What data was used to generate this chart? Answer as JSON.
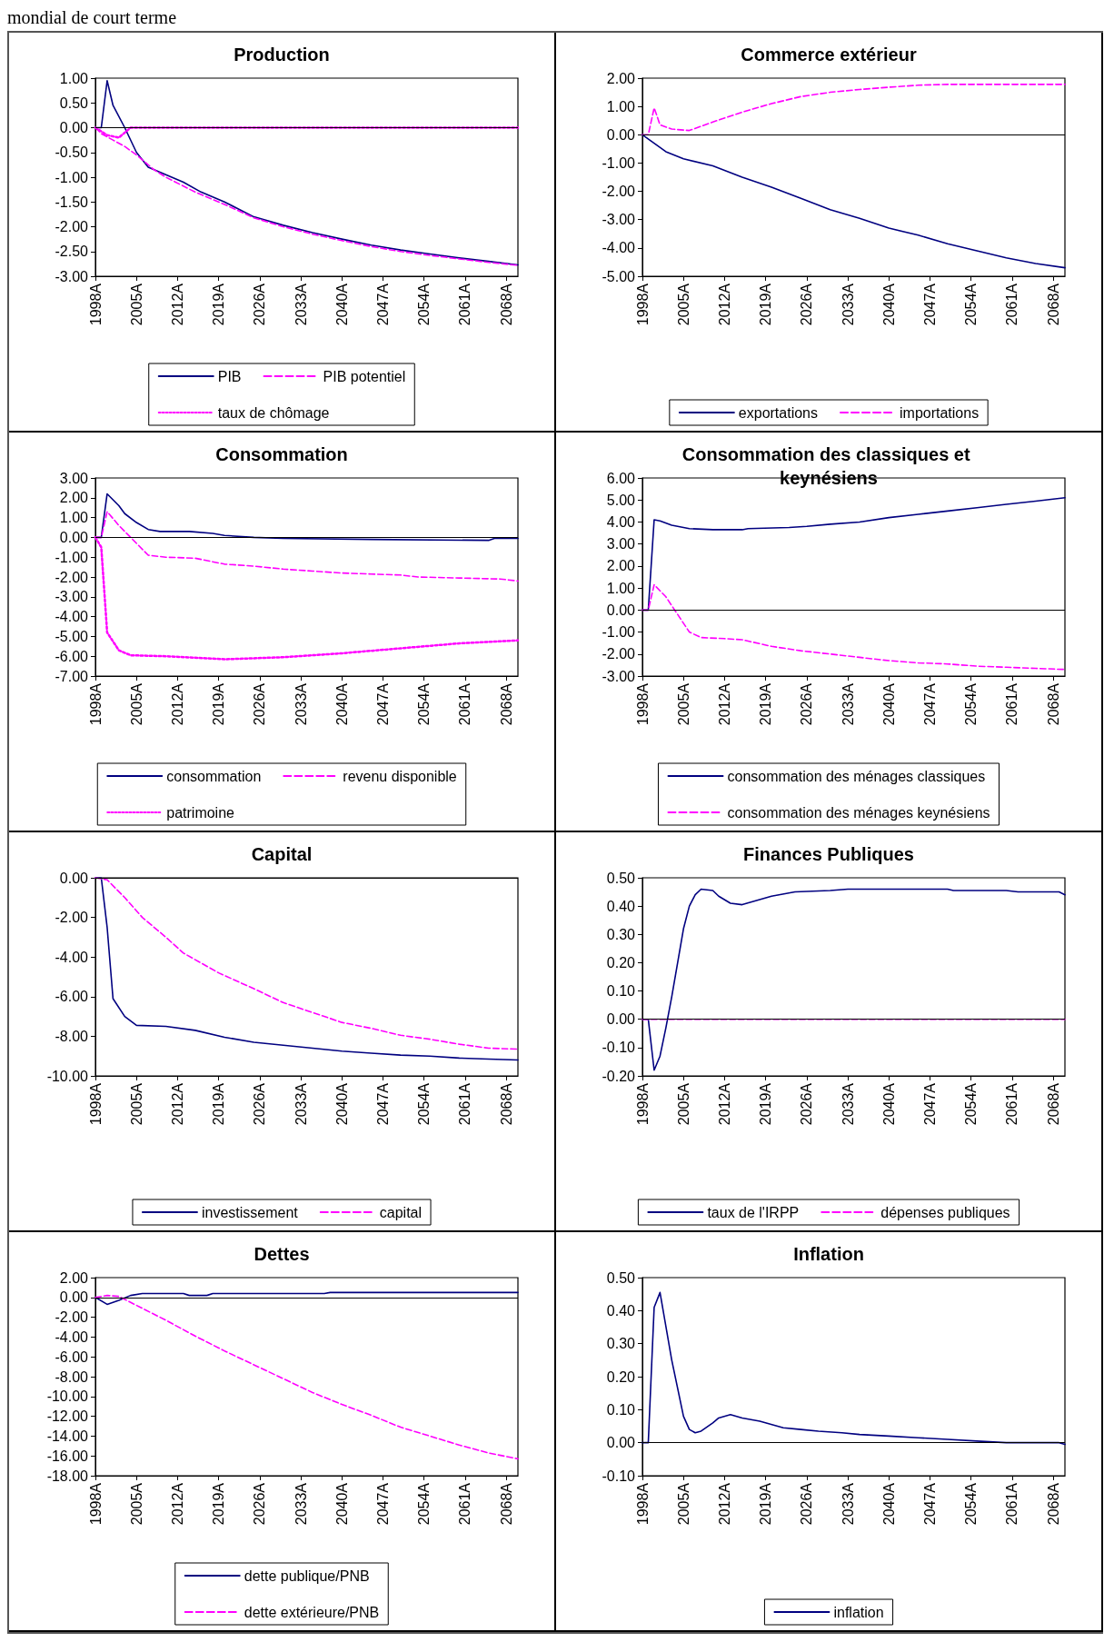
{
  "chart_data": [
    {
      "type": "other",
      "title": "mondial de court terme"
    },
    {
      "type": "line",
      "title": "Production",
      "ref_lines": [
        {
          "axis": "y",
          "value": 0
        }
      ],
      "legend": "bottom",
      "marker": "none",
      "grid": false,
      "xlim": [
        1998,
        2070
      ],
      "xticks": [
        {
          "value": 1998,
          "label": "1998A"
        },
        {
          "value": 2005,
          "label": "2005A"
        },
        {
          "value": 2012,
          "label": "2012A"
        },
        {
          "value": 2019,
          "label": "2019A"
        },
        {
          "value": 2026,
          "label": "2026A"
        },
        {
          "value": 2033,
          "label": "2033A"
        },
        {
          "value": 2040,
          "label": "2040A"
        },
        {
          "value": 2047,
          "label": "2047A"
        },
        {
          "value": 2054,
          "label": "2054A"
        },
        {
          "value": 2061,
          "label": "2061A"
        },
        {
          "value": 2068,
          "label": "2068A"
        }
      ],
      "ylim": [
        -3,
        1
      ],
      "yticks": [
        {
          "value": 1,
          "label": "1.00"
        },
        {
          "value": 0.5,
          "label": "0.50"
        },
        {
          "value": 0,
          "label": "0.00"
        },
        {
          "value": -0.5,
          "label": "-0.50"
        },
        {
          "value": -1,
          "label": "-1.00"
        },
        {
          "value": -1.5,
          "label": "-1.50"
        },
        {
          "value": -2,
          "label": "-2.00"
        },
        {
          "value": -2.5,
          "label": "-2.50"
        },
        {
          "value": -3,
          "label": "-3.00"
        }
      ],
      "series": [
        {
          "name": "PIB",
          "color": "#000080",
          "line_style": "solid",
          "x": [
            1998,
            1999,
            2000,
            2001,
            2003,
            2005,
            2007,
            2010,
            2013,
            2016,
            2020,
            2025,
            2030,
            2035,
            2040,
            2045,
            2050,
            2055,
            2060,
            2065,
            2070
          ],
          "values": [
            0,
            0,
            0.95,
            0.45,
            0,
            -0.5,
            -0.8,
            -0.95,
            -1.1,
            -1.3,
            -1.5,
            -1.8,
            -1.97,
            -2.12,
            -2.25,
            -2.37,
            -2.47,
            -2.55,
            -2.63,
            -2.7,
            -2.77
          ]
        },
        {
          "name": "PIB potentiel",
          "color": "#ff00ff",
          "line_style": "dashed",
          "x": [
            1998,
            1999,
            2001,
            2003,
            2005,
            2008,
            2010,
            2015,
            2020,
            2025,
            2030,
            2035,
            2040,
            2045,
            2050,
            2055,
            2060,
            2065,
            2070
          ],
          "values": [
            0,
            -0.12,
            -0.25,
            -0.38,
            -0.55,
            -0.85,
            -1,
            -1.3,
            -1.55,
            -1.82,
            -2,
            -2.15,
            -2.28,
            -2.4,
            -2.5,
            -2.58,
            -2.65,
            -2.72,
            -2.78
          ]
        },
        {
          "name": "taux de chômage",
          "color": "#ff00ff",
          "line_style": "dotted",
          "x": [
            1998,
            2000,
            2002,
            2004,
            2070
          ],
          "values": [
            0,
            -0.15,
            -0.2,
            0,
            0
          ]
        }
      ]
    },
    {
      "type": "line",
      "title": "Commerce extérieur",
      "ref_lines": [
        {
          "axis": "y",
          "value": 0
        }
      ],
      "legend": "bottom",
      "marker": "none",
      "grid": false,
      "xlim": [
        1998,
        2070
      ],
      "xticks": [
        {
          "value": 1998,
          "label": "1998A"
        },
        {
          "value": 2005,
          "label": "2005A"
        },
        {
          "value": 2012,
          "label": "2012A"
        },
        {
          "value": 2019,
          "label": "2019A"
        },
        {
          "value": 2026,
          "label": "2026A"
        },
        {
          "value": 2033,
          "label": "2033A"
        },
        {
          "value": 2040,
          "label": "2040A"
        },
        {
          "value": 2047,
          "label": "2047A"
        },
        {
          "value": 2054,
          "label": "2054A"
        },
        {
          "value": 2061,
          "label": "2061A"
        },
        {
          "value": 2068,
          "label": "2068A"
        }
      ],
      "ylim": [
        -5,
        2
      ],
      "yticks": [
        {
          "value": 2,
          "label": "2.00"
        },
        {
          "value": 1,
          "label": "1.00"
        },
        {
          "value": 0,
          "label": "0.00"
        },
        {
          "value": -1,
          "label": "-1.00"
        },
        {
          "value": -2,
          "label": "-2.00"
        },
        {
          "value": -3,
          "label": "-3.00"
        },
        {
          "value": -4,
          "label": "-4.00"
        },
        {
          "value": -5,
          "label": "-5.00"
        }
      ],
      "series": [
        {
          "name": "exportations",
          "color": "#000080",
          "line_style": "solid",
          "x": [
            1998,
            2000,
            2002,
            2005,
            2010,
            2015,
            2020,
            2025,
            2030,
            2035,
            2040,
            2045,
            2050,
            2055,
            2060,
            2065,
            2070
          ],
          "values": [
            0,
            -0.3,
            -0.6,
            -0.85,
            -1.1,
            -1.5,
            -1.85,
            -2.25,
            -2.65,
            -2.95,
            -3.3,
            -3.55,
            -3.85,
            -4.1,
            -4.35,
            -4.55,
            -4.7
          ]
        },
        {
          "name": "importations",
          "color": "#ff00ff",
          "line_style": "dashed",
          "x": [
            1998,
            1999,
            2000,
            2001,
            2003,
            2006,
            2010,
            2015,
            2020,
            2025,
            2030,
            2035,
            2040,
            2045,
            2050,
            2070
          ],
          "values": [
            0,
            0,
            0.95,
            0.35,
            0.2,
            0.15,
            0.45,
            0.8,
            1.1,
            1.35,
            1.5,
            1.6,
            1.68,
            1.75,
            1.78,
            1.78
          ]
        }
      ]
    },
    {
      "type": "line",
      "title": "Consommation",
      "ref_lines": [
        {
          "axis": "y",
          "value": 0
        }
      ],
      "legend": "bottom",
      "marker": "none",
      "grid": false,
      "xlim": [
        1998,
        2070
      ],
      "xticks": [
        {
          "value": 1998,
          "label": "1998A"
        },
        {
          "value": 2005,
          "label": "2005A"
        },
        {
          "value": 2012,
          "label": "2012A"
        },
        {
          "value": 2019,
          "label": "2019A"
        },
        {
          "value": 2026,
          "label": "2026A"
        },
        {
          "value": 2033,
          "label": "2033A"
        },
        {
          "value": 2040,
          "label": "2040A"
        },
        {
          "value": 2047,
          "label": "2047A"
        },
        {
          "value": 2054,
          "label": "2054A"
        },
        {
          "value": 2061,
          "label": "2061A"
        },
        {
          "value": 2068,
          "label": "2068A"
        }
      ],
      "ylim": [
        -7,
        3
      ],
      "yticks": [
        {
          "value": 3,
          "label": "3.00"
        },
        {
          "value": 2,
          "label": "2.00"
        },
        {
          "value": 1,
          "label": "1.00"
        },
        {
          "value": 0,
          "label": "0.00"
        },
        {
          "value": -1,
          "label": "-1.00"
        },
        {
          "value": -2,
          "label": "-2.00"
        },
        {
          "value": -3,
          "label": "-3.00"
        },
        {
          "value": -4,
          "label": "-4.00"
        },
        {
          "value": -5,
          "label": "-5.00"
        },
        {
          "value": -6,
          "label": "-6.00"
        },
        {
          "value": -7,
          "label": "-7.00"
        }
      ],
      "series": [
        {
          "name": "consommation",
          "color": "#000080",
          "line_style": "solid",
          "x": [
            1998,
            1999,
            2000,
            2002,
            2003,
            2005,
            2007,
            2009,
            2014,
            2018,
            2020,
            2025,
            2030,
            2045,
            2065,
            2066,
            2070
          ],
          "values": [
            0,
            0,
            2.2,
            1.6,
            1.2,
            0.75,
            0.4,
            0.3,
            0.3,
            0.2,
            0.1,
            0,
            -0.05,
            -0.1,
            -0.15,
            -0.05,
            -0.05
          ]
        },
        {
          "name": "revenu disponible",
          "color": "#ff00ff",
          "line_style": "dashed",
          "x": [
            1998,
            1999,
            2000,
            2002,
            2004,
            2007,
            2010,
            2015,
            2020,
            2025,
            2030,
            2035,
            2040,
            2045,
            2050,
            2053,
            2060,
            2067,
            2070
          ],
          "values": [
            0,
            0,
            1.3,
            0.6,
            0,
            -0.9,
            -1,
            -1.05,
            -1.35,
            -1.45,
            -1.6,
            -1.7,
            -1.8,
            -1.85,
            -1.9,
            -2,
            -2.05,
            -2.1,
            -2.2
          ]
        },
        {
          "name": "patrimoine",
          "color": "#ff00ff",
          "line_style": "dotted",
          "x": [
            1998,
            1999,
            2000,
            2002,
            2004,
            2010,
            2020,
            2030,
            2040,
            2050,
            2060,
            2070
          ],
          "values": [
            0,
            -0.5,
            -4.8,
            -5.7,
            -5.95,
            -6,
            -6.15,
            -6.05,
            -5.85,
            -5.6,
            -5.35,
            -5.2
          ]
        }
      ]
    },
    {
      "type": "line",
      "title": "Consommation des classiques et keynésiens",
      "ref_lines": [
        {
          "axis": "y",
          "value": 0
        }
      ],
      "legend": "bottom",
      "marker": "none",
      "grid": false,
      "xlim": [
        1998,
        2070
      ],
      "xticks": [
        {
          "value": 1998,
          "label": "1998A"
        },
        {
          "value": 2005,
          "label": "2005A"
        },
        {
          "value": 2012,
          "label": "2012A"
        },
        {
          "value": 2019,
          "label": "2019A"
        },
        {
          "value": 2026,
          "label": "2026A"
        },
        {
          "value": 2033,
          "label": "2033A"
        },
        {
          "value": 2040,
          "label": "2040A"
        },
        {
          "value": 2047,
          "label": "2047A"
        },
        {
          "value": 2054,
          "label": "2054A"
        },
        {
          "value": 2061,
          "label": "2061A"
        },
        {
          "value": 2068,
          "label": "2068A"
        }
      ],
      "ylim": [
        -3,
        6
      ],
      "yticks": [
        {
          "value": 6,
          "label": "6.00"
        },
        {
          "value": 5,
          "label": "5.00"
        },
        {
          "value": 4,
          "label": "4.00"
        },
        {
          "value": 3,
          "label": "3.00"
        },
        {
          "value": 2,
          "label": "2.00"
        },
        {
          "value": 1,
          "label": "1.00"
        },
        {
          "value": 0,
          "label": "0.00"
        },
        {
          "value": -1,
          "label": "-1.00"
        },
        {
          "value": -2,
          "label": "-2.00"
        },
        {
          "value": -3,
          "label": "-3.00"
        }
      ],
      "series": [
        {
          "name": "consommation des ménages classiques",
          "color": "#000080",
          "line_style": "solid",
          "x": [
            1998,
            1999,
            2000,
            2001,
            2003,
            2006,
            2010,
            2015,
            2016,
            2023,
            2026,
            2030,
            2035,
            2040,
            2045,
            2050,
            2055,
            2060,
            2065,
            2070
          ],
          "values": [
            0,
            0,
            4.1,
            4.05,
            3.85,
            3.7,
            3.65,
            3.65,
            3.7,
            3.75,
            3.8,
            3.9,
            4,
            4.2,
            4.35,
            4.5,
            4.65,
            4.8,
            4.95,
            5.1
          ]
        },
        {
          "name": "consommation des ménages keynésiens",
          "color": "#ff00ff",
          "line_style": "dashed",
          "x": [
            1998,
            1999,
            2000,
            2002,
            2004,
            2006,
            2008,
            2012,
            2015,
            2020,
            2025,
            2030,
            2035,
            2040,
            2045,
            2050,
            2055,
            2060,
            2065,
            2070
          ],
          "values": [
            0,
            0,
            1.15,
            0.6,
            -0.2,
            -1,
            -1.25,
            -1.3,
            -1.35,
            -1.65,
            -1.85,
            -2,
            -2.15,
            -2.3,
            -2.4,
            -2.45,
            -2.55,
            -2.6,
            -2.65,
            -2.7
          ]
        }
      ]
    },
    {
      "type": "line",
      "title": "Capital",
      "ref_lines": [
        {
          "axis": "y",
          "value": 0
        }
      ],
      "legend": "bottom",
      "marker": "none",
      "grid": false,
      "xlim": [
        1998,
        2070
      ],
      "xticks": [
        {
          "value": 1998,
          "label": "1998A"
        },
        {
          "value": 2005,
          "label": "2005A"
        },
        {
          "value": 2012,
          "label": "2012A"
        },
        {
          "value": 2019,
          "label": "2019A"
        },
        {
          "value": 2026,
          "label": "2026A"
        },
        {
          "value": 2033,
          "label": "2033A"
        },
        {
          "value": 2040,
          "label": "2040A"
        },
        {
          "value": 2047,
          "label": "2047A"
        },
        {
          "value": 2054,
          "label": "2054A"
        },
        {
          "value": 2061,
          "label": "2061A"
        },
        {
          "value": 2068,
          "label": "2068A"
        }
      ],
      "ylim": [
        -10,
        0
      ],
      "yticks": [
        {
          "value": 0,
          "label": "0.00"
        },
        {
          "value": -2,
          "label": "-2.00"
        },
        {
          "value": -4,
          "label": "-4.00"
        },
        {
          "value": -6,
          "label": "-6.00"
        },
        {
          "value": -8,
          "label": "-8.00"
        },
        {
          "value": -10,
          "label": "-10.00"
        }
      ],
      "series": [
        {
          "name": "investissement",
          "color": "#000080",
          "line_style": "solid",
          "x": [
            1998,
            1999,
            2000,
            2001,
            2003,
            2005,
            2010,
            2015,
            2020,
            2025,
            2030,
            2035,
            2040,
            2045,
            2050,
            2055,
            2060,
            2065,
            2070
          ],
          "values": [
            0,
            0,
            -2.5,
            -6.1,
            -7,
            -7.45,
            -7.5,
            -7.7,
            -8.05,
            -8.3,
            -8.45,
            -8.6,
            -8.75,
            -8.85,
            -8.95,
            -9,
            -9.1,
            -9.15,
            -9.2
          ]
        },
        {
          "name": "capital",
          "color": "#ff00ff",
          "line_style": "dashed",
          "x": [
            1998,
            2000,
            2003,
            2006,
            2010,
            2013,
            2019,
            2025,
            2030,
            2035,
            2040,
            2045,
            2050,
            2055,
            2060,
            2065,
            2070
          ],
          "values": [
            0,
            -0.1,
            -1,
            -2,
            -3,
            -3.8,
            -4.8,
            -5.6,
            -6.3,
            -6.8,
            -7.3,
            -7.6,
            -7.95,
            -8.15,
            -8.4,
            -8.6,
            -8.65
          ]
        }
      ]
    },
    {
      "type": "line",
      "title": "Finances Publiques",
      "ref_lines": [
        {
          "axis": "y",
          "value": 0
        }
      ],
      "legend": "bottom",
      "marker": "none",
      "grid": false,
      "xlim": [
        1998,
        2070
      ],
      "xticks": [
        {
          "value": 1998,
          "label": "1998A"
        },
        {
          "value": 2005,
          "label": "2005A"
        },
        {
          "value": 2012,
          "label": "2012A"
        },
        {
          "value": 2019,
          "label": "2019A"
        },
        {
          "value": 2026,
          "label": "2026A"
        },
        {
          "value": 2033,
          "label": "2033A"
        },
        {
          "value": 2040,
          "label": "2040A"
        },
        {
          "value": 2047,
          "label": "2047A"
        },
        {
          "value": 2054,
          "label": "2054A"
        },
        {
          "value": 2061,
          "label": "2061A"
        },
        {
          "value": 2068,
          "label": "2068A"
        }
      ],
      "ylim": [
        -0.2,
        0.5
      ],
      "yticks": [
        {
          "value": 0.5,
          "label": "0.50"
        },
        {
          "value": 0.4,
          "label": "0.40"
        },
        {
          "value": 0.3,
          "label": "0.30"
        },
        {
          "value": 0.2,
          "label": "0.20"
        },
        {
          "value": 0.1,
          "label": "0.10"
        },
        {
          "value": 0,
          "label": "0.00"
        },
        {
          "value": -0.1,
          "label": "-0.10"
        },
        {
          "value": -0.2,
          "label": "-0.20"
        }
      ],
      "series": [
        {
          "name": "taux de l'IRPP",
          "color": "#000080",
          "line_style": "solid",
          "x": [
            1998,
            1999,
            2000,
            2001,
            2002,
            2003,
            2005,
            2006,
            2007,
            2008,
            2010,
            2011,
            2013,
            2015,
            2020,
            2024,
            2030,
            2033,
            2050,
            2051,
            2060,
            2062,
            2069,
            2070
          ],
          "values": [
            0,
            0,
            -0.18,
            -0.13,
            -0.03,
            0.08,
            0.32,
            0.4,
            0.44,
            0.46,
            0.455,
            0.435,
            0.41,
            0.405,
            0.435,
            0.45,
            0.455,
            0.46,
            0.46,
            0.455,
            0.455,
            0.45,
            0.45,
            0.44
          ]
        },
        {
          "name": "dépenses publiques",
          "color": "#ff00ff",
          "line_style": "dashed",
          "x": [
            1998,
            2070
          ],
          "values": [
            0,
            0
          ]
        }
      ]
    },
    {
      "type": "line",
      "title": "Dettes",
      "ref_lines": [
        {
          "axis": "y",
          "value": 0
        }
      ],
      "legend": "bottom",
      "marker": "none",
      "grid": false,
      "xlim": [
        1998,
        2070
      ],
      "xticks": [
        {
          "value": 1998,
          "label": "1998A"
        },
        {
          "value": 2005,
          "label": "2005A"
        },
        {
          "value": 2012,
          "label": "2012A"
        },
        {
          "value": 2019,
          "label": "2019A"
        },
        {
          "value": 2026,
          "label": "2026A"
        },
        {
          "value": 2033,
          "label": "2033A"
        },
        {
          "value": 2040,
          "label": "2040A"
        },
        {
          "value": 2047,
          "label": "2047A"
        },
        {
          "value": 2054,
          "label": "2054A"
        },
        {
          "value": 2061,
          "label": "2061A"
        },
        {
          "value": 2068,
          "label": "2068A"
        }
      ],
      "ylim": [
        -18,
        2
      ],
      "yticks": [
        {
          "value": 2,
          "label": "2.00"
        },
        {
          "value": 0,
          "label": "0.00"
        },
        {
          "value": -2,
          "label": "-2.00"
        },
        {
          "value": -4,
          "label": "-4.00"
        },
        {
          "value": -6,
          "label": "-6.00"
        },
        {
          "value": -8,
          "label": "-8.00"
        },
        {
          "value": -10,
          "label": "-10.00"
        },
        {
          "value": -12,
          "label": "-12.00"
        },
        {
          "value": -14,
          "label": "-14.00"
        },
        {
          "value": -16,
          "label": "-16.00"
        },
        {
          "value": -18,
          "label": "-18.00"
        }
      ],
      "series": [
        {
          "name": "dette publique/PNB",
          "color": "#000080",
          "line_style": "solid",
          "x": [
            1998,
            2000,
            2002,
            2004,
            2006,
            2013,
            2014,
            2017,
            2018,
            2037,
            2038,
            2070
          ],
          "values": [
            0,
            -0.7,
            -0.3,
            0.2,
            0.4,
            0.4,
            0.2,
            0.2,
            0.4,
            0.4,
            0.5,
            0.5
          ]
        },
        {
          "name": "dette extérieure/PNB",
          "color": "#ff00ff",
          "line_style": "dashed",
          "x": [
            1998,
            2000,
            2002,
            2005,
            2010,
            2015,
            2020,
            2025,
            2030,
            2035,
            2040,
            2045,
            2050,
            2055,
            2060,
            2065,
            2070
          ],
          "values": [
            0,
            0.2,
            0.1,
            -0.8,
            -2.3,
            -3.9,
            -5.4,
            -6.8,
            -8.2,
            -9.6,
            -10.8,
            -11.9,
            -13.1,
            -14,
            -14.9,
            -15.7,
            -16.3
          ]
        }
      ]
    },
    {
      "type": "line",
      "title": "Inflation",
      "ref_lines": [
        {
          "axis": "y",
          "value": 0
        }
      ],
      "legend": "bottom",
      "marker": "none",
      "grid": false,
      "xlim": [
        1998,
        2070
      ],
      "xticks": [
        {
          "value": 1998,
          "label": "1998A"
        },
        {
          "value": 2005,
          "label": "2005A"
        },
        {
          "value": 2012,
          "label": "2012A"
        },
        {
          "value": 2019,
          "label": "2019A"
        },
        {
          "value": 2026,
          "label": "2026A"
        },
        {
          "value": 2033,
          "label": "2033A"
        },
        {
          "value": 2040,
          "label": "2040A"
        },
        {
          "value": 2047,
          "label": "2047A"
        },
        {
          "value": 2054,
          "label": "2054A"
        },
        {
          "value": 2061,
          "label": "2061A"
        },
        {
          "value": 2068,
          "label": "2068A"
        }
      ],
      "ylim": [
        -0.1,
        0.5
      ],
      "yticks": [
        {
          "value": 0.5,
          "label": "0.50"
        },
        {
          "value": 0.4,
          "label": "0.40"
        },
        {
          "value": 0.3,
          "label": "0.30"
        },
        {
          "value": 0.2,
          "label": "0.20"
        },
        {
          "value": 0.1,
          "label": "0.10"
        },
        {
          "value": 0,
          "label": "0.00"
        },
        {
          "value": -0.1,
          "label": "-0.10"
        }
      ],
      "series": [
        {
          "name": "inflation",
          "color": "#000080",
          "line_style": "solid",
          "x": [
            1998,
            1999,
            2000,
            2001,
            2003,
            2005,
            2006,
            2007,
            2008,
            2010,
            2011,
            2013,
            2015,
            2018,
            2022,
            2025,
            2028,
            2032,
            2035,
            2040,
            2045,
            2050,
            2055,
            2060,
            2069,
            2070
          ],
          "values": [
            0,
            0,
            0.41,
            0.455,
            0.25,
            0.08,
            0.04,
            0.03,
            0.035,
            0.06,
            0.075,
            0.085,
            0.075,
            0.065,
            0.045,
            0.04,
            0.035,
            0.03,
            0.025,
            0.02,
            0.015,
            0.01,
            0.005,
            0,
            0,
            -0.005
          ]
        }
      ]
    }
  ]
}
